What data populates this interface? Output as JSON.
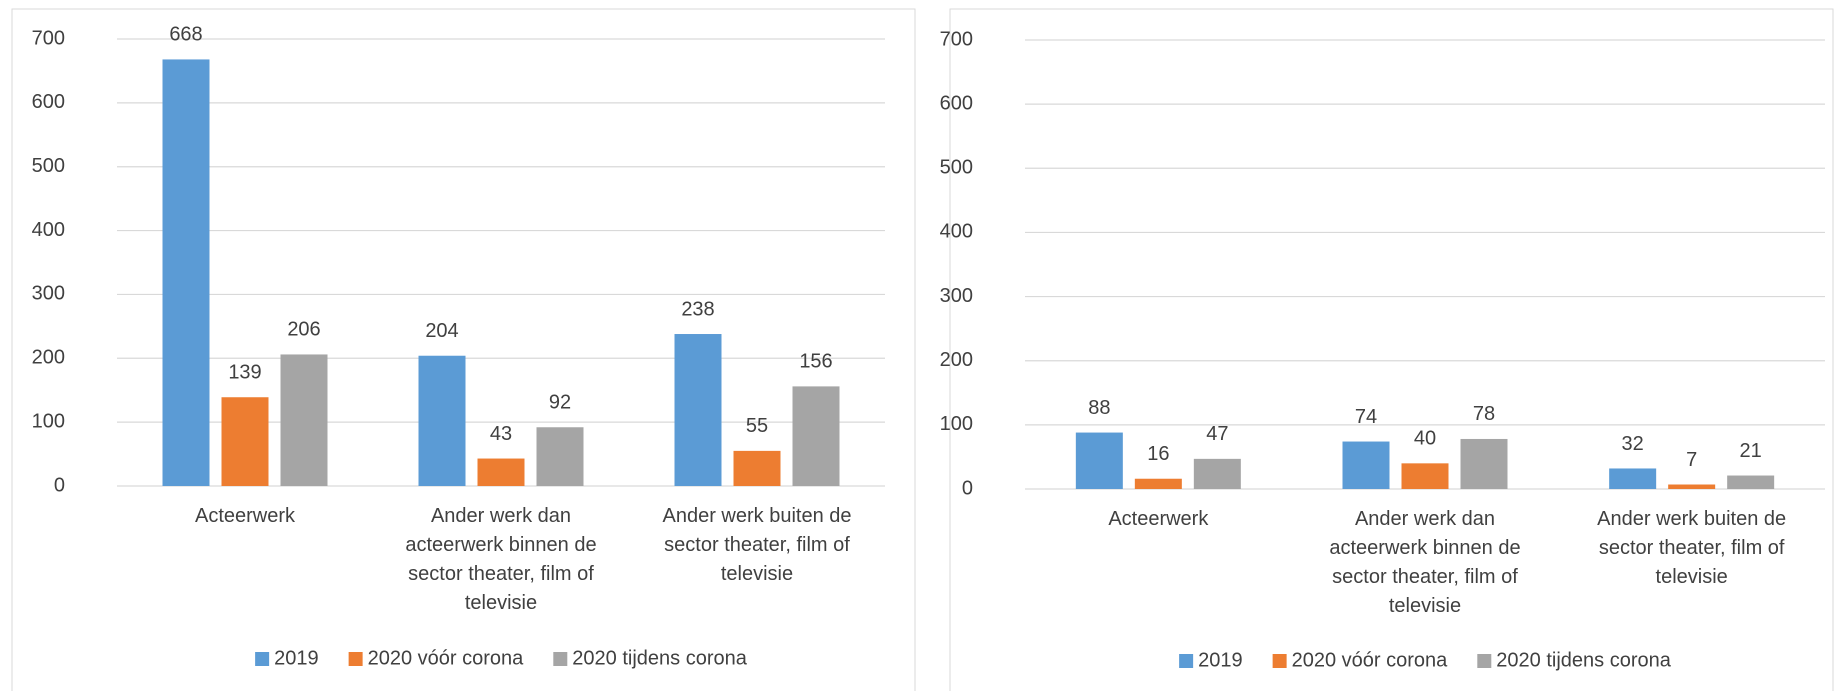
{
  "chart_data": [
    {
      "type": "bar",
      "categories": [
        "Acteerwerk",
        "Ander werk dan acteerwerk binnen de sector theater, film of televisie",
        "Ander werk buiten de sector theater, film of televisie"
      ],
      "series": [
        {
          "name": "2019",
          "color": "#5b9bd5",
          "values": [
            668,
            204,
            238
          ]
        },
        {
          "name": "2020 vóór corona",
          "color": "#ed7d31",
          "values": [
            139,
            43,
            55
          ]
        },
        {
          "name": "2020 tijdens corona",
          "color": "#a5a5a5",
          "values": [
            206,
            92,
            156
          ]
        }
      ],
      "ylim": [
        0,
        700
      ],
      "yticks": [
        0,
        100,
        200,
        300,
        400,
        500,
        600,
        700
      ],
      "grid": true,
      "legend": "bottom"
    },
    {
      "type": "bar",
      "categories": [
        "Acteerwerk",
        "Ander werk dan acteerwerk binnen de sector theater, film of televisie",
        "Ander werk buiten de sector theater, film of televisie"
      ],
      "series": [
        {
          "name": "2019",
          "color": "#5b9bd5",
          "values": [
            88,
            74,
            32
          ]
        },
        {
          "name": "2020 vóór corona",
          "color": "#ed7d31",
          "values": [
            16,
            40,
            7
          ]
        },
        {
          "name": "2020 tijdens corona",
          "color": "#a5a5a5",
          "values": [
            47,
            78,
            21
          ]
        }
      ],
      "ylim": [
        0,
        700
      ],
      "yticks": [
        0,
        100,
        200,
        300,
        400,
        500,
        600,
        700
      ],
      "grid": true,
      "legend": "bottom"
    }
  ]
}
